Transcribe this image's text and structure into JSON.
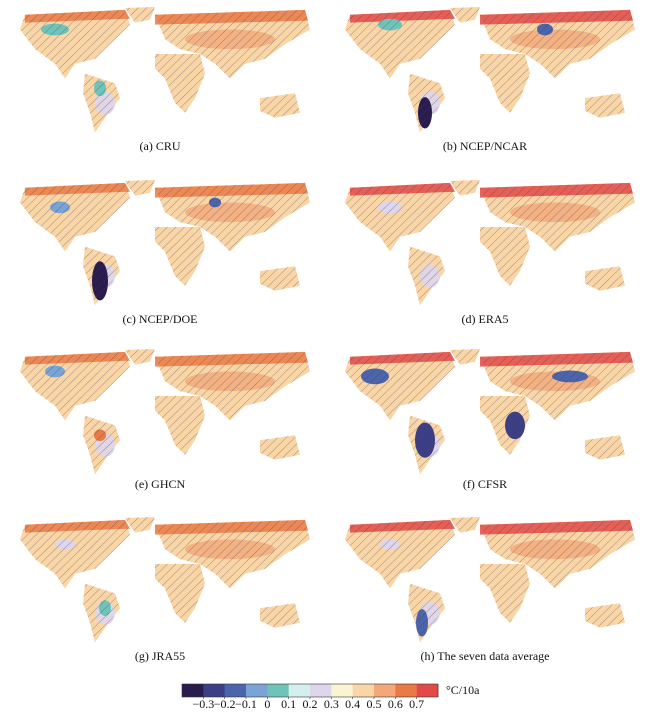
{
  "panels": [
    {
      "label": "(a) CRU"
    },
    {
      "label": "(b) NCEP/NCAR"
    },
    {
      "label": "(c) NCEP/DOE"
    },
    {
      "label": "(d) ERA5"
    },
    {
      "label": "(e) GHCN"
    },
    {
      "label": "(f) CFSR"
    },
    {
      "label": "(g) JRA55"
    },
    {
      "label": "(h) The seven data average"
    }
  ],
  "colorbar": {
    "unit": "°C/10a",
    "lim": [
      -0.4,
      0.8
    ],
    "colors": [
      "#2b1c4e",
      "#3c3f86",
      "#4b64ac",
      "#7aa3d6",
      "#6fc3b9",
      "#d4efee",
      "#ddd6ec",
      "#fbf4d2",
      "#fad6a6",
      "#f3a878",
      "#ea7a45",
      "#e24a48"
    ],
    "ticks": [
      {
        "value": -0.3,
        "label": "−0.3"
      },
      {
        "value": -0.2,
        "label": "−0.2"
      },
      {
        "value": -0.1,
        "label": "−0.1"
      },
      0,
      0.1,
      0.2,
      0.3,
      0.4,
      0.5,
      0.6,
      0.7
    ]
  }
}
